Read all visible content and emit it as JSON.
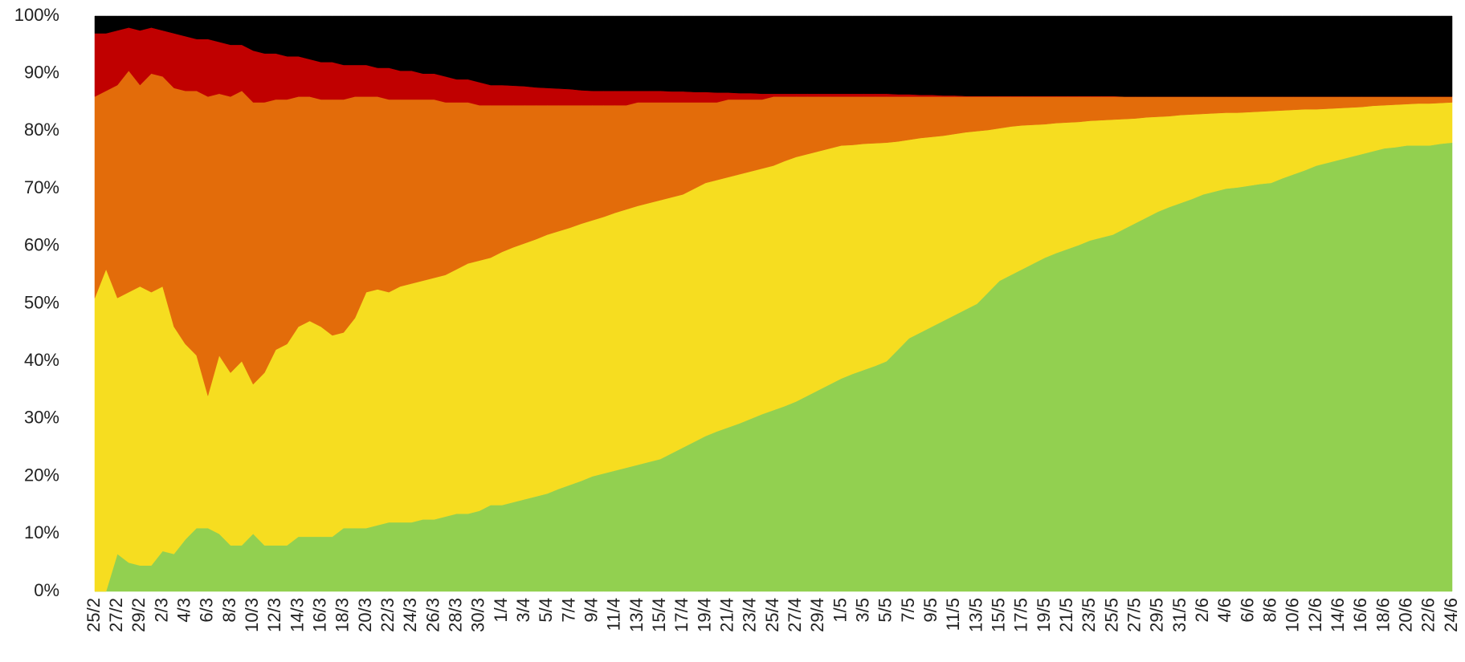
{
  "chart_data": {
    "type": "stacked_area_percent",
    "categories": [
      "25/2",
      null,
      "27/2",
      null,
      "29/2",
      null,
      "2/3",
      null,
      "4/3",
      null,
      "6/3",
      null,
      "8/3",
      null,
      "10/3",
      null,
      "12/3",
      null,
      "14/3",
      null,
      "16/3",
      null,
      "18/3",
      null,
      "20/3",
      null,
      "22/3",
      null,
      "24/3",
      null,
      "26/3",
      null,
      "28/3",
      null,
      "30/3",
      null,
      "1/4",
      null,
      "3/4",
      null,
      "5/4",
      null,
      "7/4",
      null,
      "9/4",
      null,
      "11/4",
      null,
      "13/4",
      null,
      "15/4",
      null,
      "17/4",
      null,
      "19/4",
      null,
      "21/4",
      null,
      "23/4",
      null,
      "25/4",
      null,
      "27/4",
      null,
      "29/4",
      null,
      "1/5",
      null,
      "3/5",
      null,
      "5/5",
      null,
      "7/5",
      null,
      "9/5",
      null,
      "11/5",
      null,
      "13/5",
      null,
      "15/5",
      null,
      "17/5",
      null,
      "19/5",
      null,
      "21/5",
      null,
      "23/5",
      null,
      "25/5",
      null,
      "27/5",
      null,
      "29/5",
      null,
      "31/5",
      null,
      "2/6",
      null,
      "4/6",
      null,
      "6/6",
      null,
      "8/6",
      null,
      "10/6",
      null,
      "12/6",
      null,
      "14/6",
      null,
      "16/6",
      null,
      "18/6",
      null,
      "20/6",
      null,
      "22/6",
      null,
      "24/6"
    ],
    "series": [
      {
        "color": "#92d050",
        "values": [
          0,
          0,
          6.5,
          5,
          4.5,
          4.5,
          7,
          6.5,
          9,
          11,
          11,
          10,
          8,
          8,
          10,
          8,
          8,
          8,
          9.5,
          9.5,
          9.5,
          9.5,
          11,
          11,
          11,
          11.5,
          12,
          12,
          12,
          12.5,
          12.5,
          13,
          13.5,
          13.5,
          14,
          15,
          15,
          15.5,
          16,
          16.5,
          17,
          17.8,
          18.5,
          19.2,
          20,
          20.5,
          21,
          21.5,
          22,
          22.5,
          23,
          24,
          25,
          26,
          27,
          27.8,
          28.5,
          29.2,
          30,
          30.8,
          31.5,
          32.2,
          33,
          34,
          35,
          36,
          37,
          37.8,
          38.5,
          39.2,
          40,
          42,
          44,
          45,
          46,
          47,
          48,
          49,
          50,
          52,
          54,
          55,
          56,
          57,
          58,
          58.8,
          59.5,
          60.2,
          61,
          61.5,
          62,
          63,
          64,
          65,
          66,
          66.8,
          67.5,
          68.2,
          69,
          69.5,
          70,
          70.2,
          70.5,
          70.8,
          71,
          71.8,
          72.5,
          73.2,
          74,
          74.5,
          75,
          75.5,
          76,
          76.5,
          77,
          77.2,
          77.5,
          77.5,
          77.5,
          77.8,
          78
        ]
      },
      {
        "color": "#f6dd20",
        "values": [
          51,
          56,
          44.5,
          47,
          48.5,
          47.5,
          46,
          39.5,
          34,
          30,
          23,
          31,
          30,
          32,
          26,
          30,
          34,
          35,
          36.5,
          37.5,
          36.5,
          35,
          34,
          36.5,
          41,
          41,
          40,
          41,
          41.5,
          41.5,
          42,
          42,
          42.5,
          43.5,
          43.5,
          43,
          44,
          44.3,
          44.5,
          44.7,
          45,
          44.8,
          44.7,
          44.7,
          44.5,
          44.6,
          44.8,
          44.9,
          45,
          45,
          45,
          44.5,
          44,
          44,
          44,
          43.7,
          43.5,
          43.3,
          43,
          42.7,
          42.5,
          42.6,
          42.5,
          42,
          41.5,
          41,
          40.5,
          39.8,
          39.3,
          38.7,
          38,
          36.2,
          34.5,
          33.8,
          33,
          32.2,
          31.5,
          30.8,
          30,
          28.2,
          26.5,
          25.8,
          25,
          24.1,
          23.2,
          22.6,
          22,
          21.4,
          20.8,
          20.4,
          20,
          19.1,
          18.2,
          17.4,
          16.5,
          15.8,
          15.3,
          14.7,
          14,
          13.6,
          13.2,
          13,
          12.8,
          12.6,
          12.5,
          11.8,
          11.2,
          10.6,
          9.8,
          9.4,
          9,
          8.6,
          8.2,
          7.9,
          7.5,
          7.4,
          7.2,
          7.3,
          7.3,
          7.1,
          7
        ]
      },
      {
        "color": "#e36c0a",
        "values": [
          35,
          31,
          37,
          38.5,
          35,
          38,
          36.5,
          41.5,
          44,
          46,
          52,
          45.5,
          48,
          47,
          49,
          47,
          43.5,
          42.5,
          40,
          39,
          39.5,
          41,
          40.5,
          38.5,
          34,
          33.5,
          33.5,
          32.5,
          32,
          31.5,
          31,
          30,
          29,
          28,
          27,
          26.5,
          25.5,
          24.7,
          24,
          23.3,
          22.5,
          21.9,
          21.3,
          20.6,
          20,
          19.4,
          18.7,
          18.1,
          18,
          17.5,
          17,
          16.5,
          16,
          15,
          14,
          13.5,
          13.5,
          13,
          12.5,
          12,
          12,
          11.2,
          10.5,
          10,
          9.5,
          9,
          8.5,
          8.4,
          8.2,
          8.1,
          8,
          7.8,
          7.5,
          7.2,
          7,
          6.8,
          6.5,
          6.2,
          6,
          5.8,
          5.5,
          5.2,
          5,
          4.9,
          4.8,
          4.6,
          4.5,
          4.4,
          4.2,
          4.1,
          4,
          3.9,
          3.8,
          3.6,
          3.5,
          3.4,
          3.2,
          3.1,
          3,
          2.9,
          2.8,
          2.8,
          2.7,
          2.6,
          2.5,
          2.4,
          2.3,
          2.2,
          2.2,
          2.1,
          2,
          1.9,
          1.8,
          1.6,
          1.5,
          1.4,
          1.3,
          1.2,
          1.2,
          1.1,
          1
        ]
      },
      {
        "color": "#c00000",
        "values": [
          11,
          10,
          9.5,
          7.5,
          9.5,
          8,
          8,
          9.5,
          9.5,
          9,
          10,
          9,
          9,
          8,
          9,
          8.5,
          8,
          7.5,
          7,
          6.5,
          6.5,
          6.5,
          6,
          5.5,
          5.5,
          5,
          5.5,
          5,
          5,
          4.5,
          4.5,
          4.5,
          4,
          4,
          4,
          3.5,
          3.5,
          3.4,
          3.3,
          3.1,
          3,
          2.9,
          2.8,
          2.6,
          2.5,
          2.5,
          2.5,
          2.5,
          2,
          2,
          2,
          1.9,
          1.9,
          1.8,
          1.8,
          1.7,
          1.2,
          1.1,
          1.1,
          1,
          0.5,
          0.5,
          0.5,
          0.5,
          0.5,
          0.5,
          0.5,
          0.5,
          0.5,
          0.5,
          0.5,
          0.4,
          0.4,
          0.3,
          0.3,
          0.2,
          0.2,
          0.1,
          0.1,
          0.1,
          0.1,
          0.1,
          0.1,
          0.1,
          0.1,
          0.1,
          0.1,
          0.1,
          0.1,
          0.1,
          0.1,
          0,
          0,
          0,
          0,
          0,
          0,
          0,
          0,
          0,
          0,
          0,
          0,
          0,
          0,
          0,
          0,
          0,
          0,
          0,
          0,
          0,
          0,
          0,
          0,
          0,
          0,
          0,
          0,
          0,
          0
        ]
      },
      {
        "color": "#000000",
        "values": [
          3,
          3,
          2.5,
          2,
          2.5,
          2,
          2.5,
          3,
          3.5,
          4,
          4,
          4.5,
          5,
          5,
          6,
          6.5,
          6.5,
          7,
          7,
          7.5,
          8,
          8,
          8.5,
          8.5,
          8.5,
          9,
          9,
          9.5,
          9.5,
          10,
          10,
          10.5,
          11,
          11,
          11.5,
          12,
          12,
          12.1,
          12.2,
          12.4,
          12.5,
          12.6,
          12.7,
          12.9,
          13,
          13,
          13,
          13,
          13,
          13,
          13,
          13.1,
          13.1,
          13.2,
          13.2,
          13.3,
          13.3,
          13.4,
          13.4,
          13.5,
          13.5,
          13.5,
          13.5,
          13.5,
          13.5,
          13.5,
          13.5,
          13.5,
          13.5,
          13.5,
          13.5,
          13.6,
          13.6,
          13.7,
          13.7,
          13.8,
          13.8,
          13.9,
          13.9,
          13.9,
          13.9,
          13.9,
          13.9,
          13.9,
          13.9,
          13.9,
          13.9,
          13.9,
          13.9,
          13.9,
          13.9,
          14,
          14,
          14,
          14,
          14,
          14,
          14,
          14,
          14,
          14,
          14,
          14,
          14,
          14,
          14,
          14,
          14,
          14,
          14,
          14,
          14,
          14,
          14,
          14,
          14,
          14,
          14,
          14,
          14,
          14
        ]
      }
    ],
    "ylim": [
      0,
      100
    ],
    "yticks": [
      {
        "value": 0,
        "label": "0%"
      },
      {
        "value": 10,
        "label": "10%"
      },
      {
        "value": 20,
        "label": "20%"
      },
      {
        "value": 30,
        "label": "30%"
      },
      {
        "value": 40,
        "label": "40%"
      },
      {
        "value": 50,
        "label": "50%"
      },
      {
        "value": 60,
        "label": "60%"
      },
      {
        "value": 70,
        "label": "70%"
      },
      {
        "value": 80,
        "label": "80%"
      },
      {
        "value": 90,
        "label": "90%"
      },
      {
        "value": 100,
        "label": "100%"
      }
    ],
    "grid": false
  }
}
